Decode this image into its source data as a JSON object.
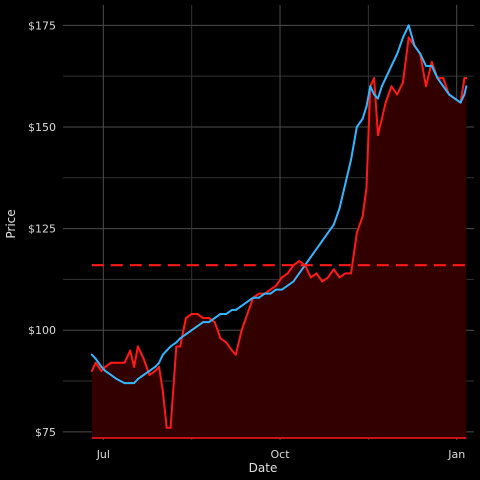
{
  "chart_data": {
    "type": "line",
    "xlabel": "Date",
    "ylabel": "Price",
    "grid": true,
    "legend": "none",
    "xlim": [
      "2023-06-10",
      "2024-01-10"
    ],
    "ylim": [
      73,
      180
    ],
    "x_ticks": [
      {
        "date": "2023-07-01",
        "label": "Jul"
      },
      {
        "date": "2023-10-01",
        "label": "Oct"
      },
      {
        "date": "2024-01-01",
        "label": "Jan"
      }
    ],
    "y_ticks": [
      {
        "value": 75,
        "label": "$75"
      },
      {
        "value": 100,
        "label": "$100"
      },
      {
        "value": 125,
        "label": "$125"
      },
      {
        "value": 150,
        "label": "$150"
      },
      {
        "value": 175,
        "label": "$175"
      }
    ],
    "reference_line": {
      "value": 116,
      "color": "#ff1a1a",
      "style": "dashed"
    },
    "baseline": {
      "value": 73.5,
      "color": "#ff1a1a"
    },
    "area_fill_color": "#330000",
    "series": [
      {
        "color": "#ff1a1a",
        "x": [
          "2023-06-25",
          "2023-06-27",
          "2023-06-30",
          "2023-07-02",
          "2023-07-05",
          "2023-07-08",
          "2023-07-12",
          "2023-07-15",
          "2023-07-17",
          "2023-07-19",
          "2023-07-22",
          "2023-07-25",
          "2023-07-28",
          "2023-07-30",
          "2023-08-01",
          "2023-08-03",
          "2023-08-05",
          "2023-08-08",
          "2023-08-10",
          "2023-08-13",
          "2023-08-16",
          "2023-08-19",
          "2023-08-22",
          "2023-08-25",
          "2023-08-28",
          "2023-08-31",
          "2023-09-03",
          "2023-09-06",
          "2023-09-08",
          "2023-09-11",
          "2023-09-14",
          "2023-09-17",
          "2023-09-20",
          "2023-09-23",
          "2023-09-26",
          "2023-09-29",
          "2023-10-02",
          "2023-10-05",
          "2023-10-08",
          "2023-10-11",
          "2023-10-14",
          "2023-10-17",
          "2023-10-20",
          "2023-10-23",
          "2023-10-26",
          "2023-10-29",
          "2023-11-01",
          "2023-11-04",
          "2023-11-07",
          "2023-11-10",
          "2023-11-13",
          "2023-11-15",
          "2023-11-17",
          "2023-11-19",
          "2023-11-21",
          "2023-11-23",
          "2023-11-25",
          "2023-11-28",
          "2023-12-01",
          "2023-12-04",
          "2023-12-07",
          "2023-12-10",
          "2023-12-13",
          "2023-12-16",
          "2023-12-19",
          "2023-12-22",
          "2023-12-25",
          "2023-12-28",
          "2023-12-31",
          "2024-01-03",
          "2024-01-05",
          "2024-01-06"
        ],
        "values": [
          90,
          92,
          90,
          91,
          92,
          92,
          92,
          95,
          91,
          96,
          93,
          89,
          90,
          91,
          85,
          76,
          76,
          96,
          96,
          103,
          104,
          104,
          103,
          103,
          102,
          98,
          97,
          95,
          94,
          100,
          104,
          108,
          109,
          109,
          110,
          111,
          113,
          114,
          116,
          117,
          116,
          113,
          114,
          112,
          113,
          115,
          113,
          114,
          114,
          124,
          128,
          135,
          160,
          162,
          148,
          152,
          156,
          160,
          158,
          161,
          172,
          170,
          168,
          160,
          166,
          162,
          162,
          158,
          157,
          156,
          162,
          162
        ]
      },
      {
        "color": "#33b6ff",
        "x": [
          "2023-06-25",
          "2023-06-27",
          "2023-06-30",
          "2023-07-02",
          "2023-07-05",
          "2023-07-08",
          "2023-07-12",
          "2023-07-15",
          "2023-07-17",
          "2023-07-19",
          "2023-07-22",
          "2023-07-25",
          "2023-07-28",
          "2023-07-30",
          "2023-08-01",
          "2023-08-03",
          "2023-08-05",
          "2023-08-08",
          "2023-08-10",
          "2023-08-13",
          "2023-08-16",
          "2023-08-19",
          "2023-08-22",
          "2023-08-25",
          "2023-08-28",
          "2023-08-31",
          "2023-09-03",
          "2023-09-06",
          "2023-09-08",
          "2023-09-11",
          "2023-09-14",
          "2023-09-17",
          "2023-09-20",
          "2023-09-23",
          "2023-09-26",
          "2023-09-29",
          "2023-10-02",
          "2023-10-05",
          "2023-10-08",
          "2023-10-11",
          "2023-10-14",
          "2023-10-17",
          "2023-10-20",
          "2023-10-23",
          "2023-10-26",
          "2023-10-29",
          "2023-11-01",
          "2023-11-04",
          "2023-11-07",
          "2023-11-10",
          "2023-11-13",
          "2023-11-15",
          "2023-11-17",
          "2023-11-19",
          "2023-11-21",
          "2023-11-23",
          "2023-11-25",
          "2023-11-28",
          "2023-12-01",
          "2023-12-04",
          "2023-12-07",
          "2023-12-10",
          "2023-12-13",
          "2023-12-16",
          "2023-12-19",
          "2023-12-22",
          "2023-12-25",
          "2023-12-28",
          "2023-12-31",
          "2024-01-03",
          "2024-01-05",
          "2024-01-06"
        ],
        "values": [
          94,
          93,
          91,
          90,
          89,
          88,
          87,
          87,
          87,
          88,
          89,
          90,
          91,
          92,
          94,
          95,
          96,
          97,
          98,
          99,
          100,
          101,
          102,
          102,
          103,
          104,
          104,
          105,
          105,
          106,
          107,
          108,
          108,
          109,
          109,
          110,
          110,
          111,
          112,
          114,
          116,
          118,
          120,
          122,
          124,
          126,
          130,
          136,
          142,
          150,
          152,
          155,
          160,
          158,
          157,
          160,
          162,
          165,
          168,
          172,
          175,
          170,
          168,
          165,
          165,
          162,
          160,
          158,
          157,
          156,
          158,
          160
        ]
      }
    ]
  }
}
